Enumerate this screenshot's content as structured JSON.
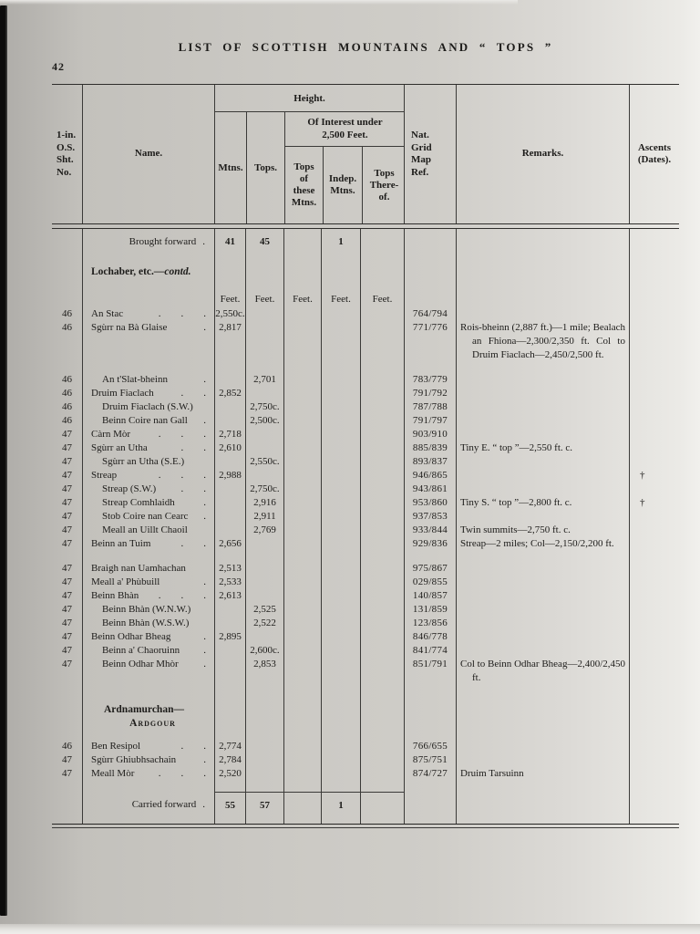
{
  "page": {
    "number": "42",
    "title": "LIST OF SCOTTISH MOUNTAINS AND “ TOPS ”"
  },
  "header": {
    "os": "1-in.\nO.S.\nSht.\nNo.",
    "name": "Name.",
    "height": "Height.",
    "mtns": "Mtns.",
    "tops": "Tops.",
    "interest": "Of Interest under\n2,500 Feet.",
    "tops_of": "Tops\nof\nthese\nMtns.",
    "indep": "Indep.\nMtns.",
    "tops_thereof": "Tops\nThere-\nof.",
    "grid": "Nat.\nGrid\nMap\nRef.",
    "remarks": "Remarks.",
    "ascents": "Ascents\n(Dates)."
  },
  "rows": [
    {
      "type": "carry",
      "name": "Brought forward",
      "leader": ".",
      "mtns": "41",
      "tops": "45",
      "indep": "1"
    },
    {
      "type": "section",
      "head": "Lochaber, etc.",
      "head_italic": "—contd.",
      "units": "Feet."
    },
    {
      "type": "data",
      "os": "46",
      "name": "An Stac",
      "leader": ".  .  .",
      "mtns": "2,550c.",
      "grid": "764/794"
    },
    {
      "type": "data",
      "os": "46",
      "name": "Sgùrr na Bà Glaise",
      "leader": ".",
      "mtns": "2,817",
      "grid": "771/776",
      "remarks": "Rois-bheinn (2,887 ft.)—1 mile; Bealach an Fhiona—2,300/2,350 ft. Col to Druim Fiaclach—2,450/2,500 ft."
    },
    {
      "type": "gap"
    },
    {
      "type": "data",
      "os": "46",
      "name": "An t'Slat-bheinn",
      "leader": ".",
      "indent": true,
      "tops": "2,701",
      "grid": "783/779"
    },
    {
      "type": "data",
      "os": "46",
      "name": "Druim Fiaclach",
      "leader": ".  .",
      "mtns": "2,852",
      "grid": "791/792"
    },
    {
      "type": "data",
      "os": "46",
      "name": "Druim Fiaclach (S.W.)",
      "indent": true,
      "tops": "2,750c.",
      "grid": "787/788"
    },
    {
      "type": "data",
      "os": "46",
      "name": "Beinn Coire nan Gall",
      "leader": ".",
      "indent": true,
      "tops": "2,500c.",
      "grid": "791/797"
    },
    {
      "type": "data",
      "os": "47",
      "name": "Càrn Mòr",
      "leader": ".  .  .",
      "mtns": "2,718",
      "grid": "903/910"
    },
    {
      "type": "data",
      "os": "47",
      "name": "Sgùrr an Utha",
      "leader": ".  .",
      "mtns": "2,610",
      "grid": "885/839",
      "remarks": "Tiny E. “ top ”—2,550 ft. c."
    },
    {
      "type": "data",
      "os": "47",
      "name": "Sgùrr an Utha (S.E.)",
      "indent": true,
      "tops": "2,550c.",
      "grid": "893/837"
    },
    {
      "type": "data",
      "os": "47",
      "name": "Streap",
      "leader": ".  .  .",
      "mtns": "2,988",
      "grid": "946/865",
      "ascent": "†"
    },
    {
      "type": "data",
      "os": "47",
      "name": "Streap (S.W.)",
      "leader": ".  .",
      "indent": true,
      "tops": "2,750c.",
      "grid": "943/861"
    },
    {
      "type": "data",
      "os": "47",
      "name": "Streap Comhlaidh",
      "leader": ".",
      "indent": true,
      "tops": "2,916",
      "grid": "953/860",
      "remarks": "Tiny S. “ top ”—2,800 ft. c.",
      "ascent": "†"
    },
    {
      "type": "data",
      "os": "47",
      "name": "Stob Coire nan Cearc",
      "leader": ".",
      "indent": true,
      "tops": "2,911",
      "grid": "937/853"
    },
    {
      "type": "data",
      "os": "47",
      "name": "Meall an Uillt Chaoil",
      "indent": true,
      "tops": "2,769",
      "grid": "933/844",
      "remarks": "Twin summits—2,750 ft. c."
    },
    {
      "type": "data",
      "os": "47",
      "name": "Beinn an Tuim",
      "leader": ".  .",
      "mtns": "2,656",
      "grid": "929/836",
      "remarks": "Streap—2 miles; Col—2,150/2,200 ft."
    },
    {
      "type": "gap"
    },
    {
      "type": "data",
      "os": "47",
      "name": "Braigh nan Uamhachan",
      "mtns": "2,513",
      "grid": "975/867"
    },
    {
      "type": "data",
      "os": "47",
      "name": "Meall a' Phùbuill",
      "leader": ".",
      "mtns": "2,533",
      "grid": "029/855"
    },
    {
      "type": "data",
      "os": "47",
      "name": "Beinn Bhàn",
      "leader": ".  .  .",
      "mtns": "2,613",
      "grid": "140/857"
    },
    {
      "type": "data",
      "os": "47",
      "name": "Beinn Bhàn (W.N.W.)",
      "indent": true,
      "tops": "2,525",
      "grid": "131/859"
    },
    {
      "type": "data",
      "os": "47",
      "name": "Beinn Bhàn (W.S.W.)",
      "indent": true,
      "tops": "2,522",
      "grid": "123/856"
    },
    {
      "type": "data",
      "os": "47",
      "name": "Beinn Odhar Bheag",
      "leader": ".",
      "mtns": "2,895",
      "grid": "846/778"
    },
    {
      "type": "data",
      "os": "47",
      "name": "Beinn a' Chaoruinn",
      "leader": ".",
      "indent": true,
      "tops": "2,600c.",
      "grid": "841/774"
    },
    {
      "type": "data",
      "os": "47",
      "name": "Beinn Odhar Mhòr",
      "leader": ".",
      "indent": true,
      "tops": "2,853",
      "grid": "851/791",
      "remarks": "Col to Beinn Odhar Bheag—2,400/2,450 ft."
    },
    {
      "type": "gap"
    },
    {
      "type": "section2",
      "head": "Ardnamurchan—",
      "head2": "Ardgour"
    },
    {
      "type": "data",
      "os": "46",
      "name": "Ben Resipol",
      "leader": ".  .",
      "mtns": "2,774",
      "grid": "766/655"
    },
    {
      "type": "data",
      "os": "47",
      "name": "Sgùrr Ghiubhsachain",
      "leader": ".",
      "mtns": "2,784",
      "grid": "875/751"
    },
    {
      "type": "data",
      "os": "47",
      "name": "Meall Mòr",
      "leader": ".  .  .",
      "mtns": "2,520",
      "grid": "874/727",
      "remarks": "Druim Tarsuinn"
    },
    {
      "type": "gap"
    },
    {
      "type": "carry",
      "rule": true,
      "name": "Carried forward",
      "leader": ".",
      "mtns": "55",
      "tops": "57",
      "indep": "1"
    }
  ]
}
